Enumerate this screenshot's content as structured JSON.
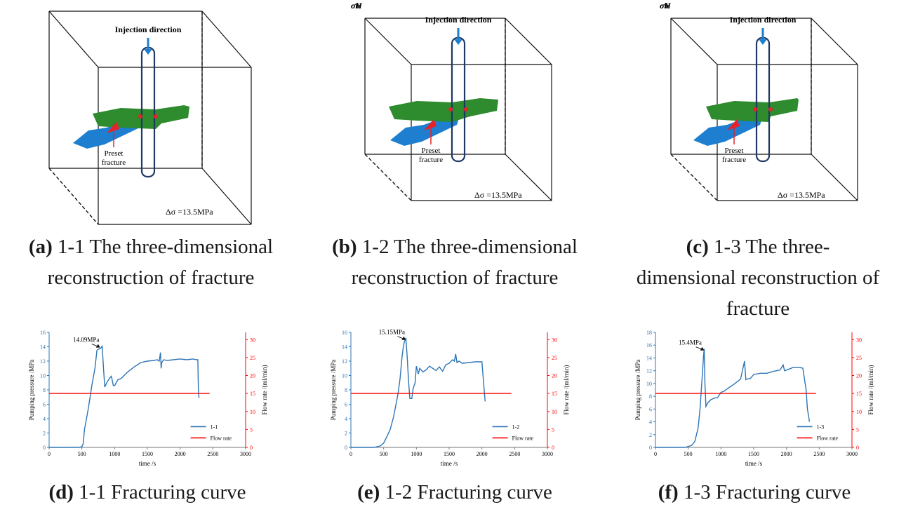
{
  "figures": [
    {
      "letter": "a",
      "caption_head": "(a)",
      "caption_text": " 1-1 The three-dimensional reconstruction of fracture",
      "injection_label": "Injection direction",
      "preset_label_1": "Preset",
      "preset_label_2": "fracture",
      "delta_sigma": "Δσ =13.5MPa"
    },
    {
      "letter": "b",
      "caption_head": "(b)",
      "caption_text": " 1-2 The three-dimensional reconstruction of fracture",
      "injection_label": "Injection direction",
      "preset_label_1": "Preset",
      "preset_label_2": "fracture",
      "delta_sigma": "Δσ =13.5MPa",
      "axis_h": "σh",
      "axis_H": "σH",
      "axis_v": "σv"
    },
    {
      "letter": "c",
      "caption_head": "(c)",
      "caption_text": " 1-3 The three-dimensional reconstruction of fracture",
      "injection_label": "Injection direction",
      "preset_label_1": "Preset",
      "preset_label_2": "fracture",
      "delta_sigma": "Δσ =13.5MPa",
      "axis_h": "σh",
      "axis_H": "σH",
      "axis_v": "σv"
    }
  ],
  "captions": {
    "a_head": "(a)",
    "a_text": " 1-1 The three-dimensional",
    "a_text2": "reconstruction of fracture",
    "b_head": "(b)",
    "b_text": " 1-2 The three-dimensional",
    "b_text2": "reconstruction of fracture",
    "c_head": "(c)",
    "c_text": " 1-3 The three-",
    "c_text2": "dimensional reconstruction of",
    "c_text3": "fracture",
    "d_head": "(d)",
    "d_text": " 1-1 Fracturing curve",
    "e_head": "(e)",
    "e_text": " 1-2 Fracturing curve",
    "f_head": "(f)",
    "f_text": " 1-3 Fracturing curve"
  },
  "colors": {
    "pressure": "#2e75b6",
    "flow": "#ff0000",
    "green": "#2e8b2e",
    "blue": "#1e7fd0",
    "frame": "#1f3864"
  },
  "chart_data": [
    {
      "type": "line",
      "id": "d",
      "xlabel": "time /s",
      "ylabel": "Pumping pressure /MPa",
      "y2label": "Flow rate /(ml/min)",
      "xlim": [
        0,
        3000
      ],
      "xticks": [
        0,
        500,
        1000,
        1500,
        2000,
        2500,
        3000
      ],
      "ylim": [
        0,
        16
      ],
      "yticks": [
        0,
        2,
        4,
        6,
        8,
        10,
        12,
        14,
        16
      ],
      "y2lim": [
        0,
        32
      ],
      "y2ticks": [
        0,
        5,
        10,
        15,
        20,
        25,
        30
      ],
      "annotation": {
        "text": "14.09MPa",
        "x": 780,
        "y": 14.09
      },
      "series": [
        {
          "name": "1-1",
          "axis": "left",
          "color": "#2e75b6",
          "x": [
            0,
            450,
            500,
            520,
            540,
            560,
            600,
            650,
            700,
            730,
            760,
            790,
            810,
            830,
            850,
            880,
            920,
            950,
            980,
            1000,
            1050,
            1100,
            1200,
            1300,
            1400,
            1500,
            1600,
            1650,
            1680,
            1700,
            1710,
            1720,
            1750,
            1800,
            1900,
            2000,
            2100,
            2200,
            2250,
            2270,
            2280,
            2290
          ],
          "y": [
            0,
            0,
            0.1,
            0.5,
            2.5,
            3.5,
            5.5,
            8.5,
            11,
            13.5,
            13.7,
            13.8,
            14.09,
            11,
            8.4,
            9.0,
            9.6,
            9.9,
            8.6,
            8.6,
            9.4,
            9.6,
            10.5,
            11.2,
            11.8,
            12.0,
            12.1,
            12.2,
            12.0,
            13.2,
            11.0,
            11.8,
            12.2,
            12.1,
            12.2,
            12.3,
            12.2,
            12.3,
            12.2,
            12.2,
            7.5,
            6.9
          ]
        },
        {
          "name": "Flow rate",
          "axis": "right",
          "color": "#ff0000",
          "x": [
            0,
            2450
          ],
          "y": [
            15,
            15
          ]
        }
      ],
      "legend": [
        "1-1",
        "Flow rate"
      ]
    },
    {
      "type": "line",
      "id": "e",
      "xlabel": "time /s",
      "ylabel": "Pumping pressure /MPa",
      "y2label": "Flow rate /(ml/min)",
      "xlim": [
        0,
        3000
      ],
      "xticks": [
        0,
        500,
        1000,
        1500,
        2000,
        2500,
        3000
      ],
      "ylim": [
        0,
        16
      ],
      "yticks": [
        0,
        2,
        4,
        6,
        8,
        10,
        12,
        14,
        16
      ],
      "y2lim": [
        0,
        32
      ],
      "y2ticks": [
        0,
        5,
        10,
        15,
        20,
        25,
        30
      ],
      "annotation": {
        "text": "15.15MPa",
        "x": 840,
        "y": 15.15
      },
      "series": [
        {
          "name": "1-2",
          "axis": "left",
          "color": "#2e75b6",
          "x": [
            0,
            350,
            450,
            500,
            550,
            600,
            650,
            700,
            720,
            750,
            780,
            800,
            820,
            840,
            860,
            880,
            900,
            930,
            950,
            980,
            1000,
            1030,
            1050,
            1100,
            1150,
            1200,
            1300,
            1350,
            1400,
            1450,
            1500,
            1550,
            1580,
            1600,
            1620,
            1650,
            1700,
            1800,
            1900,
            2000,
            2030,
            2050
          ],
          "y": [
            0,
            0,
            0.2,
            0.6,
            1.5,
            2.5,
            4.2,
            6.5,
            7.5,
            9.5,
            12.5,
            14.0,
            14.8,
            15.15,
            12.5,
            9.3,
            6.8,
            6.8,
            8.2,
            9.0,
            11.3,
            10.2,
            11.0,
            10.5,
            10.8,
            11.3,
            10.7,
            11.2,
            10.6,
            11.5,
            11.7,
            12.2,
            12.0,
            13.0,
            11.8,
            12.0,
            11.7,
            11.8,
            11.9,
            11.9,
            8.5,
            6.4
          ]
        },
        {
          "name": "Flow rate",
          "axis": "right",
          "color": "#ff0000",
          "x": [
            0,
            2450
          ],
          "y": [
            15,
            15
          ]
        }
      ],
      "legend": [
        "1-2",
        "Flow rate"
      ]
    },
    {
      "type": "line",
      "id": "f",
      "xlabel": "time /s",
      "ylabel": "Pumping pressure /MPa",
      "y2label": "Flow rate /(ml/min)",
      "xlim": [
        0,
        3000
      ],
      "xticks": [
        0,
        500,
        1000,
        1500,
        2000,
        2500,
        3000
      ],
      "ylim": [
        0,
        18
      ],
      "yticks": [
        0,
        2,
        4,
        6,
        8,
        10,
        12,
        14,
        16,
        18
      ],
      "y2lim": [
        0,
        32
      ],
      "y2ticks": [
        0,
        5,
        10,
        15,
        20,
        25,
        30
      ],
      "annotation": {
        "text": "15.4MPa",
        "x": 745,
        "y": 15.4
      },
      "series": [
        {
          "name": "1-3",
          "axis": "left",
          "color": "#2e75b6",
          "x": [
            0,
            450,
            550,
            600,
            650,
            680,
            700,
            720,
            735,
            745,
            755,
            770,
            800,
            850,
            900,
            950,
            1000,
            1050,
            1100,
            1200,
            1300,
            1360,
            1380,
            1400,
            1450,
            1500,
            1600,
            1700,
            1800,
            1900,
            1950,
            1970,
            2000,
            2100,
            2200,
            2250,
            2300,
            2320,
            2340,
            2350
          ],
          "y": [
            0,
            0,
            0.3,
            0.9,
            3.0,
            6.0,
            9.0,
            12.0,
            14.5,
            15.4,
            10.0,
            6.4,
            7.0,
            7.5,
            7.7,
            7.8,
            8.6,
            8.8,
            9.2,
            9.9,
            10.7,
            13.5,
            10.6,
            10.7,
            10.8,
            11.4,
            11.6,
            11.6,
            11.9,
            12.1,
            12.9,
            12.0,
            12.1,
            12.5,
            12.5,
            12.4,
            9.0,
            6.0,
            4.8,
            4.0
          ]
        },
        {
          "name": "Flow rate",
          "axis": "right",
          "color": "#ff0000",
          "x": [
            0,
            2450
          ],
          "y": [
            15,
            15
          ]
        }
      ],
      "legend": [
        "1-3",
        "Flow rate"
      ]
    }
  ]
}
